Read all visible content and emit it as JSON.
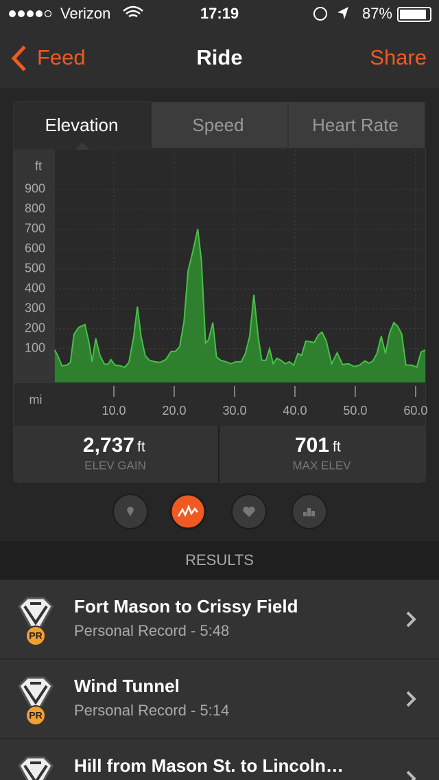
{
  "status_bar": {
    "carrier": "Verizon",
    "time": "17:19",
    "battery": "87%"
  },
  "nav": {
    "back": "Feed",
    "title": "Ride",
    "action": "Share"
  },
  "tabs": [
    "Elevation",
    "Speed",
    "Heart Rate"
  ],
  "chart_data": {
    "type": "area",
    "y_unit": "ft",
    "x_unit": "mi",
    "color": "#2f8f2f",
    "line_color": "#47c047",
    "grid": true,
    "x": [
      0.2,
      0.7,
      1.4,
      2.2,
      2.8,
      3.4,
      4.2,
      5.2,
      5.9,
      6.4,
      7.0,
      7.7,
      8.4,
      9.0,
      9.5,
      10.2,
      11.0,
      11.8,
      12.5,
      13.3,
      13.9,
      14.5,
      15.2,
      15.9,
      16.8,
      17.7,
      18.6,
      19.5,
      20.2,
      20.9,
      21.6,
      22.3,
      23.0,
      23.9,
      24.5,
      25.2,
      25.7,
      26.4,
      27.0,
      27.7,
      28.6,
      29.4,
      30.2,
      31.1,
      31.8,
      32.5,
      33.2,
      33.9,
      34.5,
      35.2,
      35.8,
      36.4,
      37.0,
      37.7,
      38.4,
      39.1,
      39.8,
      40.5,
      41.1,
      41.8,
      42.5,
      43.2,
      43.9,
      44.5,
      45.2,
      46.1,
      47.0,
      47.9,
      48.9,
      49.8,
      50.7,
      51.6,
      52.3,
      52.9,
      53.6,
      54.3,
      55.0,
      55.7,
      56.4,
      57.0,
      57.7,
      58.4,
      59.3,
      60.2,
      60.9,
      61.6
    ],
    "values": [
      93,
      65,
      14,
      17,
      31,
      173,
      207,
      221,
      128,
      34,
      152,
      65,
      24,
      20,
      45,
      17,
      14,
      7,
      31,
      162,
      311,
      162,
      65,
      41,
      34,
      31,
      45,
      86,
      86,
      110,
      231,
      491,
      578,
      701,
      543,
      128,
      145,
      231,
      58,
      41,
      34,
      24,
      34,
      34,
      76,
      162,
      370,
      162,
      41,
      41,
      100,
      24,
      52,
      41,
      24,
      34,
      17,
      76,
      65,
      138,
      135,
      131,
      169,
      183,
      138,
      24,
      79,
      20,
      24,
      10,
      17,
      38,
      27,
      38,
      76,
      162,
      76,
      180,
      231,
      214,
      173,
      17,
      17,
      7,
      83,
      93
    ],
    "xlim": [
      0,
      61.6
    ],
    "ylim": [
      -70,
      1100
    ],
    "xticks": [
      {
        "value": 10,
        "label": "10.0"
      },
      {
        "value": 20,
        "label": "20.0"
      },
      {
        "value": 30,
        "label": "30.0"
      },
      {
        "value": 40,
        "label": "40.0"
      },
      {
        "value": 50,
        "label": "50.0"
      },
      {
        "value": 60,
        "label": "60.0"
      }
    ],
    "yticks": [
      100,
      200,
      300,
      400,
      500,
      600,
      700,
      800,
      900
    ]
  },
  "stats": [
    {
      "value": "2,737",
      "unit": "ft",
      "label": "ELEV GAIN"
    },
    {
      "value": "701",
      "unit": "ft",
      "label": "MAX ELEV"
    }
  ],
  "results": {
    "title": "RESULTS",
    "items": [
      {
        "badge": "PR",
        "title": "Fort Mason to Crissy Field",
        "subtitle": "Personal Record - 5:48"
      },
      {
        "badge": "PR",
        "title": "Wind Tunnel",
        "subtitle": "Personal Record - 5:14"
      },
      {
        "badge": "PR",
        "title": "Hill from Mason St. to Lincoln…"
      }
    ]
  }
}
